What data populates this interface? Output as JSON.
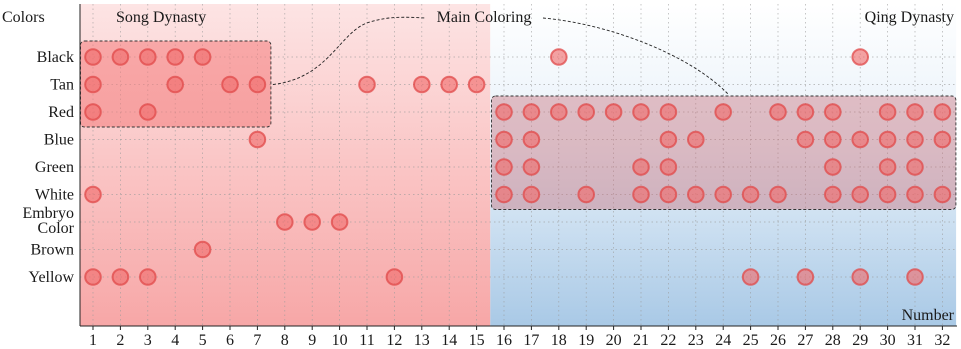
{
  "chart_data": {
    "type": "scatter",
    "y_axis_title": "Colors",
    "x_axis_title": "Number",
    "categories": [
      "Black",
      "Tan",
      "Red",
      "Blue",
      "Green",
      "White",
      "Embryo Color",
      "Brown",
      "Yellow"
    ],
    "category_label_lines": [
      [
        "Black"
      ],
      [
        "Tan"
      ],
      [
        "Red"
      ],
      [
        "Blue"
      ],
      [
        "Green"
      ],
      [
        "White"
      ],
      [
        "Embryo",
        "Color"
      ],
      [
        "Brown"
      ],
      [
        "Yellow"
      ]
    ],
    "x_ticks": [
      1,
      2,
      3,
      4,
      5,
      6,
      7,
      8,
      9,
      10,
      11,
      12,
      13,
      14,
      15,
      16,
      17,
      18,
      19,
      20,
      21,
      22,
      23,
      24,
      25,
      26,
      27,
      28,
      29,
      30,
      31,
      32
    ],
    "xlim": [
      0.5,
      32.5
    ],
    "grid": true,
    "regions": [
      {
        "label": "Song Dynasty",
        "x_range": [
          0.5,
          15.5
        ],
        "color": "#f8a5a5"
      },
      {
        "label": "Qing Dynasty",
        "x_range": [
          15.5,
          32.5
        ],
        "color": "#b9d4ec"
      }
    ],
    "highlight_boxes": [
      {
        "x_range": [
          1,
          7
        ],
        "categories": [
          "Black",
          "Red"
        ],
        "color": "#f48080"
      },
      {
        "x_range": [
          16,
          32
        ],
        "categories": [
          "Red",
          "White"
        ],
        "color": "#d98a8f"
      }
    ],
    "annotation": "Main Coloring",
    "marker_color": "#f06a6a",
    "points": [
      {
        "color": "Black",
        "x": [
          1,
          2,
          3,
          4,
          5,
          18,
          29
        ]
      },
      {
        "color": "Tan",
        "x": [
          1,
          4,
          6,
          7,
          11,
          13,
          14,
          15
        ]
      },
      {
        "color": "Red",
        "x": [
          1,
          3,
          16,
          17,
          18,
          19,
          20,
          21,
          22,
          24,
          26,
          27,
          28,
          30,
          31,
          32
        ]
      },
      {
        "color": "Blue",
        "x": [
          7,
          16,
          17,
          22,
          23,
          27,
          28,
          29,
          30,
          31,
          32
        ]
      },
      {
        "color": "Green",
        "x": [
          16,
          17,
          21,
          22,
          28,
          30,
          31
        ]
      },
      {
        "color": "White",
        "x": [
          1,
          16,
          17,
          19,
          21,
          22,
          23,
          24,
          25,
          26,
          28,
          29,
          30,
          31,
          32
        ]
      },
      {
        "color": "Embryo Color",
        "x": [
          8,
          9,
          10
        ]
      },
      {
        "color": "Brown",
        "x": [
          5
        ]
      },
      {
        "color": "Yellow",
        "x": [
          1,
          2,
          3,
          12,
          25,
          27,
          29,
          31
        ]
      }
    ]
  }
}
